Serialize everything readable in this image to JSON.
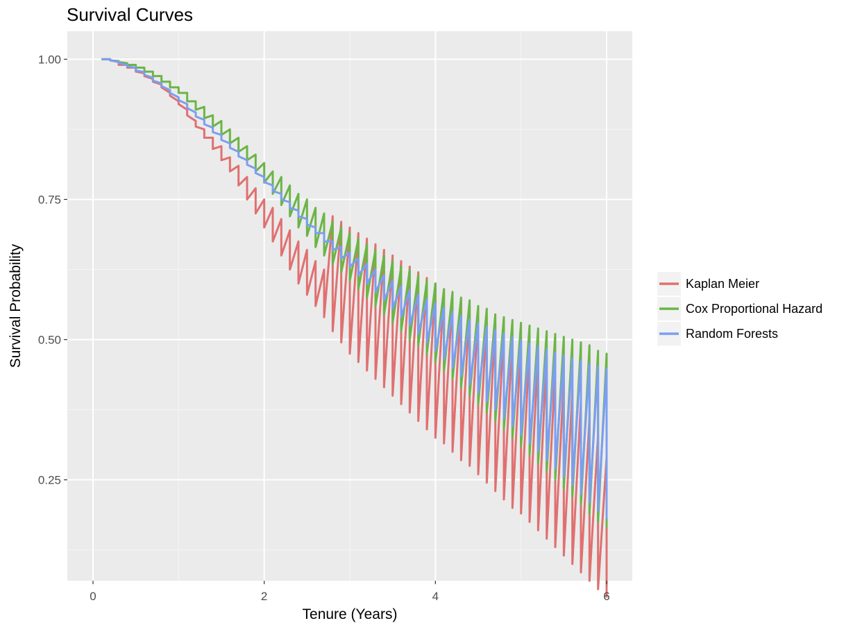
{
  "chart_data": {
    "type": "line",
    "title": "Survival Curves",
    "xlabel": "Tenure (Years)",
    "ylabel": "Survival Probability",
    "xlim": [
      -0.3,
      6.3
    ],
    "ylim": [
      0.07,
      1.05
    ],
    "x_ticks": [
      0,
      2,
      4,
      6
    ],
    "x_tick_labels": [
      "0",
      "2",
      "4",
      "6"
    ],
    "y_ticks": [
      0.25,
      0.5,
      0.75,
      1.0
    ],
    "y_tick_labels": [
      "0.25",
      "0.50",
      "0.75",
      "1.00"
    ],
    "grid": true,
    "legend_position": "right",
    "x": [
      0.1,
      0.2,
      0.3,
      0.4,
      0.5,
      0.6,
      0.7,
      0.8,
      0.9,
      1.0,
      1.1,
      1.2,
      1.3,
      1.4,
      1.5,
      1.6,
      1.7,
      1.8,
      1.9,
      2.0,
      2.1,
      2.2,
      2.3,
      2.4,
      2.5,
      2.6,
      2.7,
      2.8,
      2.9,
      3.0,
      3.1,
      3.2,
      3.3,
      3.4,
      3.5,
      3.6,
      3.7,
      3.8,
      3.9,
      4.0,
      4.1,
      4.2,
      4.3,
      4.4,
      4.5,
      4.6,
      4.7,
      4.8,
      4.9,
      5.0,
      5.1,
      5.2,
      5.3,
      5.4,
      5.5,
      5.6,
      5.7,
      5.8,
      5.9,
      6.0
    ],
    "series": [
      {
        "name": "Kaplan Meier",
        "color": "#e07070",
        "high": [
          1.0,
          1.0,
          0.995,
          0.99,
          0.985,
          0.975,
          0.965,
          0.955,
          0.94,
          0.925,
          0.91,
          0.89,
          0.875,
          0.86,
          0.845,
          0.825,
          0.81,
          0.79,
          0.77,
          0.75,
          0.735,
          0.715,
          0.695,
          0.675,
          0.66,
          0.64,
          0.625,
          0.72,
          0.71,
          0.7,
          0.69,
          0.68,
          0.67,
          0.66,
          0.65,
          0.64,
          0.63,
          0.62,
          0.61,
          0.6,
          0.59,
          0.58,
          0.57,
          0.56,
          0.55,
          0.54,
          0.53,
          0.52,
          0.51,
          0.5,
          0.49,
          0.48,
          0.47,
          0.45,
          0.43,
          0.41,
          0.39,
          0.36,
          0.33,
          0.29
        ],
        "low": [
          1.0,
          0.998,
          0.99,
          0.985,
          0.978,
          0.97,
          0.96,
          0.95,
          0.935,
          0.92,
          0.9,
          0.88,
          0.86,
          0.84,
          0.82,
          0.8,
          0.775,
          0.75,
          0.725,
          0.7,
          0.675,
          0.65,
          0.625,
          0.6,
          0.58,
          0.56,
          0.54,
          0.515,
          0.495,
          0.475,
          0.46,
          0.445,
          0.43,
          0.415,
          0.4,
          0.385,
          0.37,
          0.355,
          0.34,
          0.325,
          0.315,
          0.3,
          0.285,
          0.275,
          0.26,
          0.245,
          0.23,
          0.215,
          0.2,
          0.19,
          0.175,
          0.16,
          0.145,
          0.13,
          0.115,
          0.1,
          0.085,
          0.07,
          0.055,
          0.04
        ]
      },
      {
        "name": "Cox Proportional Hazard",
        "color": "#6bb547",
        "high": [
          1.0,
          1.0,
          0.997,
          0.993,
          0.99,
          0.985,
          0.978,
          0.97,
          0.96,
          0.95,
          0.94,
          0.925,
          0.915,
          0.9,
          0.89,
          0.875,
          0.86,
          0.845,
          0.83,
          0.815,
          0.8,
          0.79,
          0.775,
          0.76,
          0.75,
          0.735,
          0.725,
          0.71,
          0.7,
          0.69,
          0.68,
          0.67,
          0.66,
          0.65,
          0.64,
          0.63,
          0.625,
          0.615,
          0.605,
          0.6,
          0.59,
          0.585,
          0.575,
          0.57,
          0.56,
          0.555,
          0.545,
          0.54,
          0.535,
          0.53,
          0.525,
          0.52,
          0.515,
          0.51,
          0.505,
          0.5,
          0.495,
          0.49,
          0.48,
          0.475
        ],
        "low": [
          1.0,
          0.998,
          0.995,
          0.99,
          0.985,
          0.978,
          0.97,
          0.96,
          0.95,
          0.94,
          0.925,
          0.91,
          0.895,
          0.88,
          0.865,
          0.85,
          0.835,
          0.82,
          0.8,
          0.78,
          0.76,
          0.74,
          0.72,
          0.7,
          0.685,
          0.665,
          0.65,
          0.635,
          0.62,
          0.605,
          0.59,
          0.575,
          0.56,
          0.545,
          0.53,
          0.515,
          0.5,
          0.49,
          0.475,
          0.46,
          0.445,
          0.43,
          0.415,
          0.4,
          0.385,
          0.37,
          0.355,
          0.34,
          0.325,
          0.31,
          0.295,
          0.28,
          0.265,
          0.25,
          0.235,
          0.22,
          0.205,
          0.19,
          0.175,
          0.165
        ]
      },
      {
        "name": "Random Forests",
        "color": "#7b9ef0",
        "high": [
          1.0,
          1.0,
          0.996,
          0.99,
          0.985,
          0.977,
          0.967,
          0.957,
          0.945,
          0.932,
          0.92,
          0.905,
          0.892,
          0.878,
          0.865,
          0.85,
          0.835,
          0.82,
          0.805,
          0.79,
          0.775,
          0.76,
          0.745,
          0.73,
          0.715,
          0.7,
          0.69,
          0.675,
          0.665,
          0.655,
          0.645,
          0.635,
          0.625,
          0.615,
          0.605,
          0.595,
          0.588,
          0.58,
          0.572,
          0.565,
          0.557,
          0.55,
          0.543,
          0.536,
          0.53,
          0.523,
          0.517,
          0.511,
          0.505,
          0.499,
          0.493,
          0.488,
          0.482,
          0.477,
          0.472,
          0.467,
          0.462,
          0.457,
          0.452,
          0.448
        ],
        "low": [
          1.0,
          0.998,
          0.993,
          0.987,
          0.98,
          0.972,
          0.962,
          0.952,
          0.94,
          0.927,
          0.913,
          0.898,
          0.884,
          0.87,
          0.856,
          0.842,
          0.827,
          0.812,
          0.797,
          0.781,
          0.765,
          0.75,
          0.735,
          0.72,
          0.705,
          0.69,
          0.675,
          0.66,
          0.645,
          0.63,
          0.615,
          0.6,
          0.585,
          0.57,
          0.555,
          0.54,
          0.525,
          0.51,
          0.495,
          0.48,
          0.465,
          0.45,
          0.435,
          0.42,
          0.405,
          0.39,
          0.375,
          0.36,
          0.345,
          0.33,
          0.315,
          0.3,
          0.285,
          0.27,
          0.255,
          0.24,
          0.225,
          0.21,
          0.195,
          0.18
        ]
      }
    ]
  }
}
